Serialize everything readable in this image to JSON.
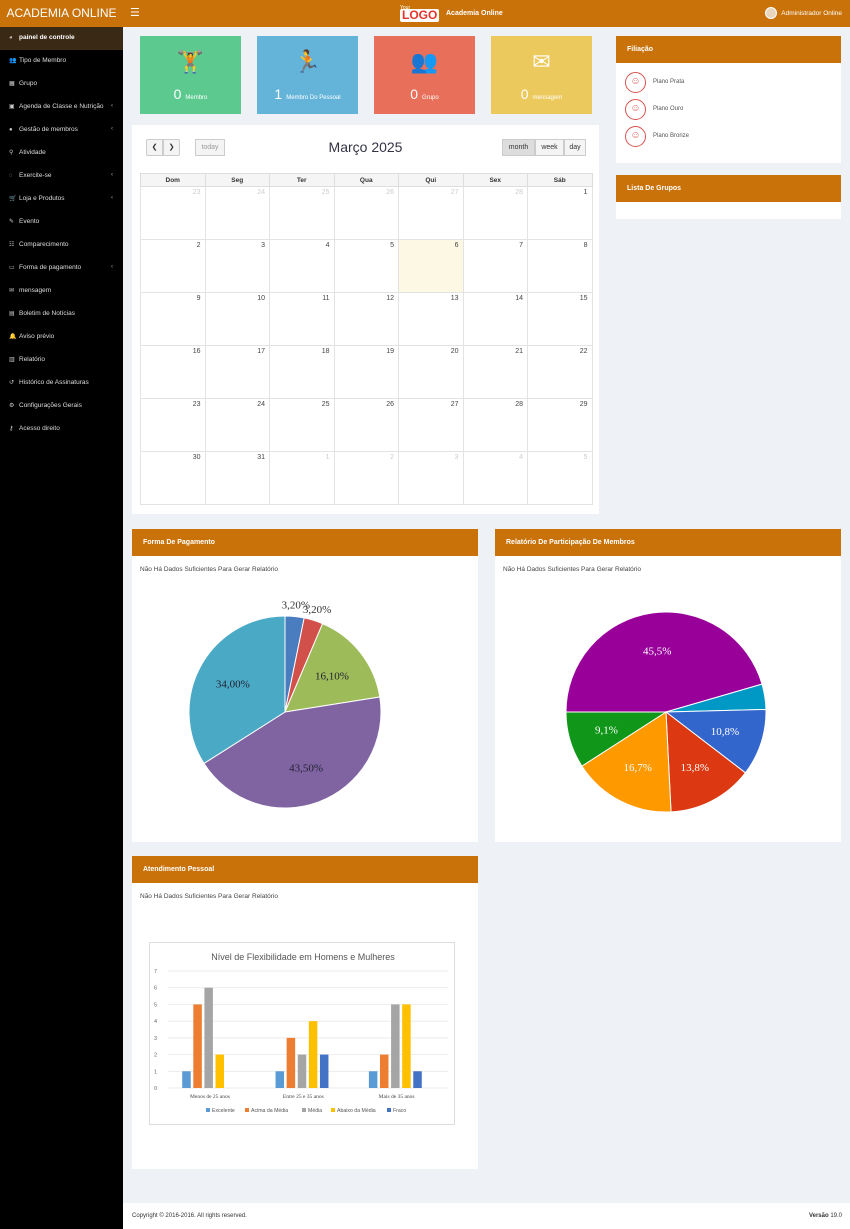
{
  "topbar": {
    "brand": "ACADEMIA ONLINE",
    "menu_icon": "menu-icon",
    "logo_small": "Your",
    "logo_text": "LOGO",
    "center_title": "Academia Online",
    "user_name": "Administrador Online"
  },
  "sidebar": {
    "items": [
      {
        "label": "painel de controle",
        "icon": "dashboard-icon",
        "active": true
      },
      {
        "label": "Tipo de Membro",
        "icon": "users-icon"
      },
      {
        "label": "Grupo",
        "icon": "group-icon"
      },
      {
        "label": "Agenda de Classe e Nutrição",
        "icon": "calendar-icon",
        "caret": true
      },
      {
        "label": "Gestão de membros",
        "icon": "user-icon",
        "caret": true
      },
      {
        "label": "Atividade",
        "icon": "bike-icon"
      },
      {
        "label": "Exercite-se",
        "icon": "exercise-icon",
        "caret": true
      },
      {
        "label": "Loja e Produtos",
        "icon": "cart-icon",
        "caret": true
      },
      {
        "label": "Evento",
        "icon": "event-icon"
      },
      {
        "label": "Comparecimento",
        "icon": "attendance-icon"
      },
      {
        "label": "Forma de pagamento",
        "icon": "payment-icon",
        "caret": true
      },
      {
        "label": "mensagem",
        "icon": "message-icon"
      },
      {
        "label": "Boletim de Notícias",
        "icon": "newsletter-icon"
      },
      {
        "label": "Aviso prévio",
        "icon": "bell-icon"
      },
      {
        "label": "Relatório",
        "icon": "report-icon"
      },
      {
        "label": "Histórico de Assinaturas",
        "icon": "history-icon"
      },
      {
        "label": "Configurações Gerais",
        "icon": "settings-icon"
      },
      {
        "label": "Acesso direito",
        "icon": "key-icon"
      }
    ]
  },
  "tiles": [
    {
      "value": "0",
      "label": "Membro",
      "color": "#5cc98f",
      "icon": "weightlifter-icon",
      "glyph": "🏋"
    },
    {
      "value": "1",
      "label": "Membro Do Pessoal",
      "color": "#64b4d9",
      "icon": "treadmill-icon",
      "glyph": "🏃"
    },
    {
      "value": "0",
      "label": "Grupo",
      "color": "#e8705b",
      "icon": "group-icon",
      "glyph": "👥"
    },
    {
      "value": "0",
      "label": "mensagem",
      "color": "#ecc95d",
      "icon": "envelope-icon",
      "glyph": "✉"
    }
  ],
  "calendar": {
    "title": "Março 2025",
    "today_label": "today",
    "views": [
      "month",
      "week",
      "day"
    ],
    "active_view": "month",
    "weekdays": [
      "Dom",
      "Seg",
      "Ter",
      "Qua",
      "Qui",
      "Sex",
      "Sáb"
    ],
    "weeks": [
      [
        {
          "d": "23",
          "o": true
        },
        {
          "d": "24",
          "o": true
        },
        {
          "d": "25",
          "o": true
        },
        {
          "d": "26",
          "o": true
        },
        {
          "d": "27",
          "o": true
        },
        {
          "d": "28",
          "o": true
        },
        {
          "d": "1"
        }
      ],
      [
        {
          "d": "2"
        },
        {
          "d": "3"
        },
        {
          "d": "4"
        },
        {
          "d": "5"
        },
        {
          "d": "6",
          "t": true
        },
        {
          "d": "7"
        },
        {
          "d": "8"
        }
      ],
      [
        {
          "d": "9"
        },
        {
          "d": "10"
        },
        {
          "d": "11"
        },
        {
          "d": "12"
        },
        {
          "d": "13"
        },
        {
          "d": "14"
        },
        {
          "d": "15"
        }
      ],
      [
        {
          "d": "16"
        },
        {
          "d": "17"
        },
        {
          "d": "18"
        },
        {
          "d": "19"
        },
        {
          "d": "20"
        },
        {
          "d": "21"
        },
        {
          "d": "22"
        }
      ],
      [
        {
          "d": "23"
        },
        {
          "d": "24"
        },
        {
          "d": "25"
        },
        {
          "d": "26"
        },
        {
          "d": "27"
        },
        {
          "d": "28"
        },
        {
          "d": "29"
        }
      ],
      [
        {
          "d": "30"
        },
        {
          "d": "31"
        },
        {
          "d": "1",
          "o": true
        },
        {
          "d": "2",
          "o": true
        },
        {
          "d": "3",
          "o": true
        },
        {
          "d": "4",
          "o": true
        },
        {
          "d": "5",
          "o": true
        }
      ]
    ]
  },
  "filiacao": {
    "title": "Filiação",
    "plans": [
      "Plano Prata",
      "Plano Ouro",
      "Plano Bronze"
    ]
  },
  "grupos": {
    "title": "Lista De Grupos"
  },
  "pagamento": {
    "title": "Forma De Pagamento",
    "note": "Não Há Dados Suficientes Para Gerar Relatório"
  },
  "participacao": {
    "title": "Relatório De Participação De Membros",
    "note": "Não Há Dados Suficientes Para Gerar Relatório"
  },
  "atendimento": {
    "title": "Atendimento Pessoal",
    "note": "Não Há Dados Suficientes Para Gerar Relatório"
  },
  "chart_data": [
    {
      "type": "pie",
      "slices": [
        {
          "label": "3,20%",
          "value": 3.2,
          "color": "#4a7cc0"
        },
        {
          "label": "3,20%",
          "value": 3.2,
          "color": "#d2504a"
        },
        {
          "label": "16,10%",
          "value": 16.1,
          "color": "#9dbb59"
        },
        {
          "label": "43,50%",
          "value": 43.5,
          "color": "#8064a2"
        },
        {
          "label": "34,00%",
          "value": 34.0,
          "color": "#4aaac6"
        }
      ]
    },
    {
      "type": "pie",
      "slices": [
        {
          "label": "45,5%",
          "value": 45.5,
          "color": "#990099"
        },
        {
          "label": "",
          "value": 4.1,
          "color": "#0099c6"
        },
        {
          "label": "10,8%",
          "value": 10.8,
          "color": "#3366cc"
        },
        {
          "label": "13,8%",
          "value": 13.8,
          "color": "#dc3912"
        },
        {
          "label": "16,7%",
          "value": 16.7,
          "color": "#ff9900"
        },
        {
          "label": "9,1%",
          "value": 9.1,
          "color": "#109618"
        }
      ]
    },
    {
      "type": "bar",
      "title": "Nível de Flexibilidade em Homens e Mulheres",
      "categories": [
        "Menos de 25 anos",
        "Entre 25 e 35 anos",
        "Mais de 35 anos"
      ],
      "ylim": [
        0,
        7
      ],
      "yticks": [
        "0",
        "1",
        "2",
        "3",
        "4",
        "5",
        "6",
        "7"
      ],
      "series": [
        {
          "name": "Excelente",
          "color": "#5b9bd5",
          "values": [
            1,
            1,
            1
          ]
        },
        {
          "name": "Acima da Média",
          "color": "#ed7d31",
          "values": [
            5,
            3,
            2
          ]
        },
        {
          "name": "Média",
          "color": "#a5a5a5",
          "values": [
            6,
            2,
            5
          ]
        },
        {
          "name": "Abaixo da Média",
          "color": "#ffc000",
          "values": [
            2,
            4,
            5
          ]
        },
        {
          "name": "Fraco",
          "color": "#4472c4",
          "values": [
            0,
            2,
            1
          ]
        }
      ]
    }
  ],
  "footer": {
    "copyright": "Copyright © 2016-2016. All rights reserved.",
    "version_label": "Versão",
    "version": "19.0"
  }
}
